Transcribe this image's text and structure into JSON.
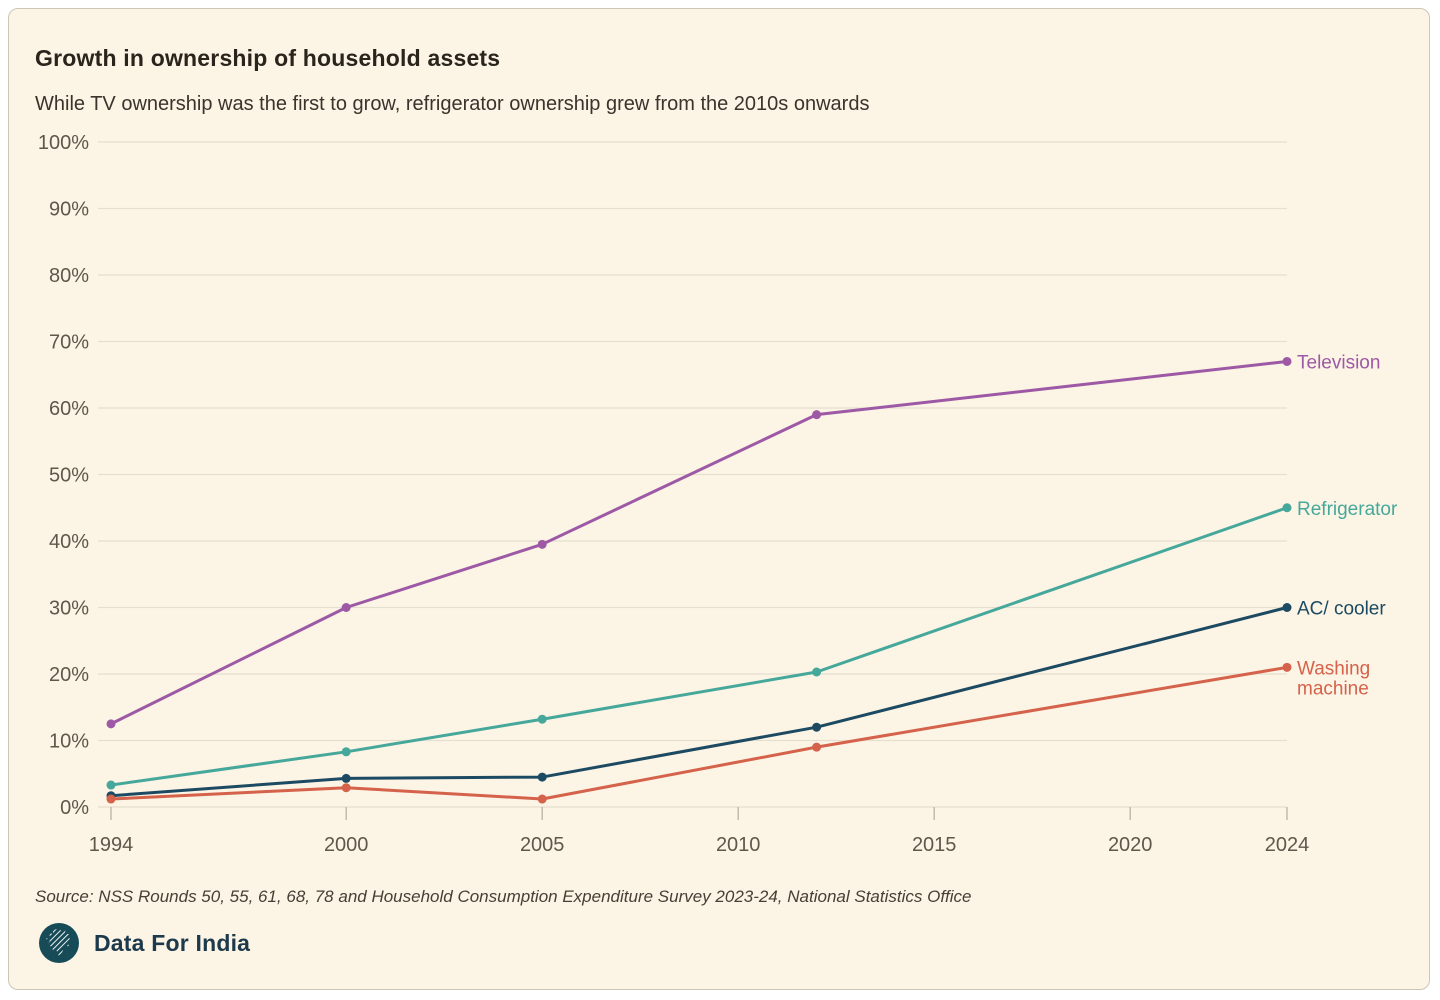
{
  "chart_data": {
    "type": "line",
    "title": "Growth in ownership of household assets",
    "subtitle": "While TV ownership was the first to grow, refrigerator ownership grew from the 2010s onwards",
    "xlabel": "",
    "ylabel": "",
    "x": [
      1994,
      2000,
      2005,
      2012,
      2024
    ],
    "x_ticks": [
      1994,
      2000,
      2005,
      2010,
      2015,
      2020,
      2024
    ],
    "xlim": [
      1994,
      2024
    ],
    "y_ticks": [
      0,
      10,
      20,
      30,
      40,
      50,
      60,
      70,
      80,
      90,
      100
    ],
    "ylim": [
      0,
      100
    ],
    "y_suffix": "%",
    "grid": true,
    "legend_position": "right-end-of-line",
    "series": [
      {
        "name": "Television",
        "color": "#9d59a5",
        "label_lines": [
          "Television"
        ],
        "values": [
          12.5,
          30,
          39.5,
          59,
          67
        ]
      },
      {
        "name": "Refrigerator",
        "color": "#45a89b",
        "label_lines": [
          "Refrigerator"
        ],
        "values": [
          3.3,
          8.3,
          13.2,
          20.3,
          45
        ]
      },
      {
        "name": "AC/ cooler",
        "color": "#1c4a63",
        "label_lines": [
          "AC/ cooler"
        ],
        "values": [
          1.7,
          4.3,
          4.5,
          12,
          30
        ]
      },
      {
        "name": "Washing machine",
        "color": "#d5624b",
        "label_lines": [
          "Washing",
          "machine"
        ],
        "values": [
          1.2,
          2.9,
          1.2,
          9,
          21
        ]
      }
    ]
  },
  "footer": {
    "source": "Source: NSS Rounds 50, 55, 61, 68, 78 and Household Consumption Expenditure Survey 2023-24, National Statistics Office",
    "brand": "Data For India"
  },
  "colors": {
    "background": "#fcf4e4",
    "card_border": "#ccc6b9",
    "gridline": "#e5dfd0",
    "tick": "#b9b3a5",
    "axis_text": "#5e584c",
    "title_text": "#29241c",
    "subtitle_text": "#39342c",
    "source_text": "#453f36",
    "logo_circle": "#174b57",
    "brand_text": "#1c3a4c"
  }
}
